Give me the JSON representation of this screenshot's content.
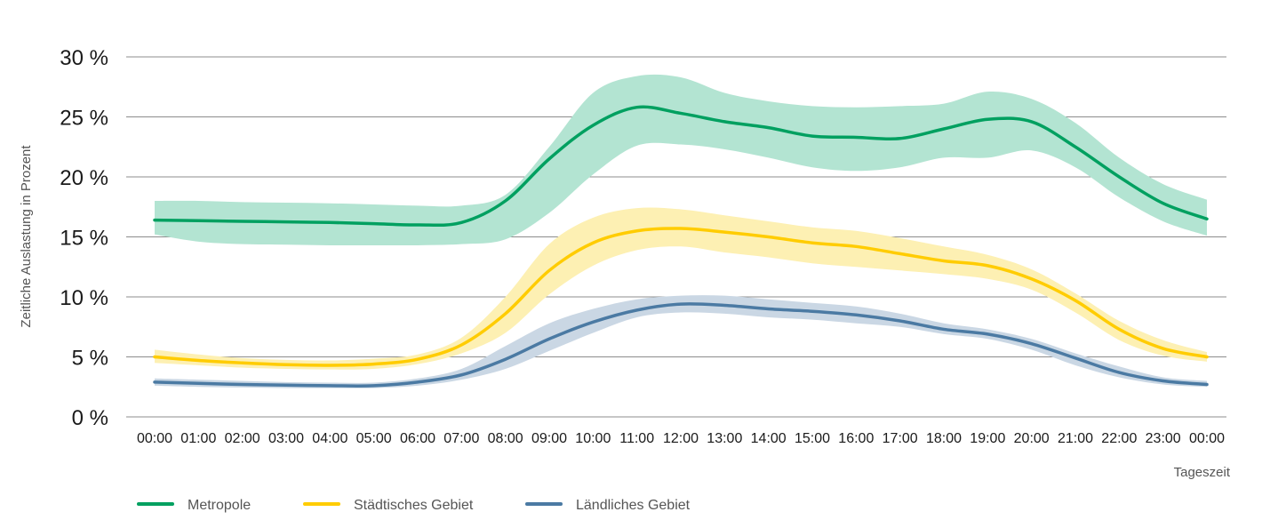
{
  "chart_data": {
    "type": "line",
    "title": "",
    "xlabel": "Tageszeit",
    "ylabel": "Zeitliche Auslastung in Prozent",
    "ylim": [
      0,
      30
    ],
    "y_ticks": [
      "0 %",
      "5 %",
      "10 %",
      "15 %",
      "20 %",
      "25 %",
      "30 %"
    ],
    "y_tick_values": [
      0,
      5,
      10,
      15,
      20,
      25,
      30
    ],
    "grid": true,
    "legend_position": "bottom-left",
    "categories": [
      "00:00",
      "01:00",
      "02:00",
      "03:00",
      "04:00",
      "05:00",
      "06:00",
      "07:00",
      "08:00",
      "09:00",
      "10:00",
      "11:00",
      "12:00",
      "13:00",
      "14:00",
      "15:00",
      "16:00",
      "17:00",
      "18:00",
      "19:00",
      "20:00",
      "21:00",
      "22:00",
      "23:00",
      "00:00"
    ],
    "series": [
      {
        "name": "Metropole",
        "color": "#00a060",
        "band_color": "#b3e4d2",
        "values": [
          16.4,
          16.35,
          16.3,
          16.25,
          16.2,
          16.1,
          16.0,
          16.2,
          18.0,
          21.5,
          24.3,
          25.8,
          25.3,
          24.6,
          24.1,
          23.4,
          23.3,
          23.2,
          24.0,
          24.8,
          24.6,
          22.5,
          20.0,
          17.8,
          16.5
        ],
        "lower": [
          15.2,
          14.6,
          14.4,
          14.35,
          14.3,
          14.3,
          14.3,
          14.4,
          14.8,
          17.0,
          20.2,
          22.6,
          22.7,
          22.3,
          21.6,
          20.8,
          20.5,
          20.8,
          21.6,
          21.6,
          22.2,
          20.8,
          18.3,
          16.3,
          15.1
        ],
        "upper": [
          18.0,
          18.0,
          17.9,
          17.85,
          17.8,
          17.7,
          17.6,
          17.6,
          18.5,
          22.5,
          27.0,
          28.4,
          28.3,
          27.0,
          26.3,
          25.9,
          25.8,
          25.9,
          26.1,
          27.1,
          26.5,
          24.5,
          21.6,
          19.4,
          18.1
        ]
      },
      {
        "name": "Städtisches Gebiet",
        "color": "#ffcc00",
        "band_color": "#fdf0b3",
        "values": [
          5.0,
          4.7,
          4.5,
          4.35,
          4.3,
          4.4,
          4.8,
          6.0,
          8.6,
          12.2,
          14.5,
          15.5,
          15.7,
          15.4,
          15.0,
          14.5,
          14.2,
          13.6,
          13.0,
          12.6,
          11.5,
          9.7,
          7.3,
          5.7,
          5.0
        ],
        "lower": [
          4.5,
          4.3,
          4.1,
          4.0,
          3.95,
          4.0,
          4.4,
          5.3,
          7.0,
          10.2,
          12.6,
          13.9,
          14.2,
          13.7,
          13.3,
          12.8,
          12.5,
          12.2,
          11.9,
          11.5,
          10.6,
          8.7,
          6.4,
          5.1,
          4.6
        ],
        "upper": [
          5.6,
          5.2,
          4.9,
          4.75,
          4.7,
          4.85,
          5.2,
          6.6,
          10.0,
          14.4,
          16.6,
          17.4,
          17.3,
          16.8,
          16.3,
          15.8,
          15.5,
          14.9,
          14.2,
          13.5,
          12.3,
          10.3,
          8.0,
          6.4,
          5.4
        ]
      },
      {
        "name": "Ländliches Gebiet",
        "color": "#4b7aa3",
        "band_color": "#cad7e4",
        "values": [
          2.9,
          2.8,
          2.7,
          2.65,
          2.6,
          2.6,
          2.9,
          3.5,
          4.8,
          6.5,
          7.9,
          8.9,
          9.4,
          9.3,
          9.0,
          8.8,
          8.5,
          8.0,
          7.3,
          6.9,
          6.1,
          4.9,
          3.7,
          3.0,
          2.7
        ],
        "lower": [
          2.6,
          2.5,
          2.45,
          2.4,
          2.4,
          2.4,
          2.6,
          3.1,
          4.0,
          5.5,
          7.0,
          8.3,
          8.7,
          8.6,
          8.3,
          8.1,
          7.8,
          7.5,
          6.9,
          6.5,
          5.6,
          4.3,
          3.3,
          2.7,
          2.5
        ],
        "upper": [
          3.2,
          3.1,
          3.0,
          2.9,
          2.85,
          2.85,
          3.2,
          4.0,
          5.9,
          7.8,
          9.0,
          9.8,
          10.1,
          10.1,
          9.8,
          9.5,
          9.2,
          8.6,
          7.8,
          7.3,
          6.5,
          5.3,
          4.2,
          3.3,
          3.0
        ]
      }
    ]
  }
}
